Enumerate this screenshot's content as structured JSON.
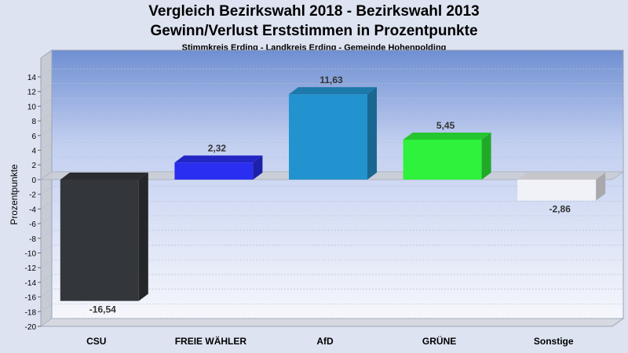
{
  "chart_data": {
    "type": "bar",
    "title": "Vergleich Bezirkswahl 2018 - Bezirkswahl 2013",
    "title_line2": "Gewinn/Verlust Erststimmen in Prozentpunkte",
    "subtitle": "Stimmkreis Erding - Landkreis Erding - Gemeinde Hohenpolding",
    "ylabel": "Prozentpunkte",
    "xlabel": "",
    "ylim": [
      -20,
      14
    ],
    "yticks": [
      14,
      12,
      10,
      8,
      6,
      4,
      2,
      0,
      -2,
      -4,
      -6,
      -8,
      -10,
      -12,
      -14,
      -16,
      -18,
      -20
    ],
    "grid": true,
    "categories": [
      "CSU",
      "FREIE WÄHLER",
      "AfD",
      "GRÜNE",
      "Sonstige"
    ],
    "values": [
      -16.54,
      2.32,
      11.63,
      5.45,
      -2.86
    ],
    "value_labels": [
      "-16,54",
      "2,32",
      "11,63",
      "5,45",
      "-2,86"
    ],
    "colors": [
      "#33363b",
      "#2a2ef0",
      "#2393cf",
      "#2ef23b",
      "#f1f2f7"
    ]
  }
}
